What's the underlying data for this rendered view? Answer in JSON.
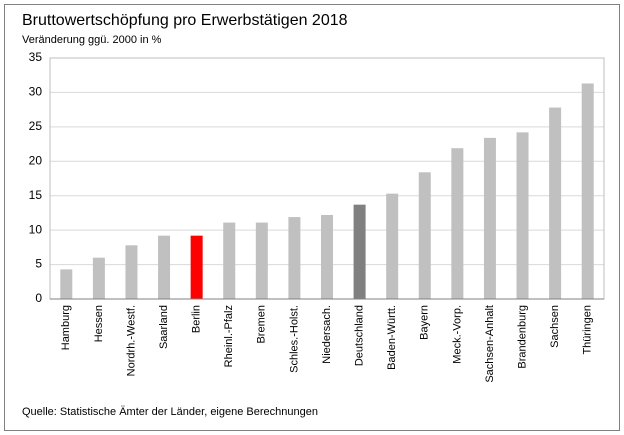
{
  "chart_data": {
    "type": "bar",
    "title": "Bruttowertschöpfung  pro Erwerbstätigen  2018",
    "subtitle": "Veränderung ggü. 2000 in %",
    "source": "Quelle: Statistische Ämter der Länder,  eigene Berechnungen",
    "categories": [
      "Hamburg",
      "Hessen",
      "Nordrh.-Westf.",
      "Saarland",
      "Berlin",
      "Rheinl.-Pfalz",
      "Bremen",
      "Schles.-Holst.",
      "Niedersach.",
      "Deutschland",
      "Baden-Württ.",
      "Bayern",
      "Meck.-Vorp.",
      "Sachsen-Anhalt",
      "Brandenburg",
      "Sachsen",
      "Thüringen"
    ],
    "values": [
      4.3,
      6.0,
      7.8,
      9.2,
      9.2,
      11.1,
      11.1,
      11.9,
      12.2,
      13.7,
      15.3,
      18.4,
      21.9,
      23.4,
      24.2,
      27.8,
      31.3
    ],
    "colors": [
      "#c0c0c0",
      "#c0c0c0",
      "#c0c0c0",
      "#c0c0c0",
      "#ff0000",
      "#c0c0c0",
      "#c0c0c0",
      "#c0c0c0",
      "#c0c0c0",
      "#808080",
      "#c0c0c0",
      "#c0c0c0",
      "#c0c0c0",
      "#c0c0c0",
      "#c0c0c0",
      "#c0c0c0",
      "#c0c0c0"
    ],
    "ylim": [
      0,
      35
    ],
    "yticks": [
      0,
      5,
      10,
      15,
      20,
      25,
      30,
      35
    ],
    "grid": true
  }
}
